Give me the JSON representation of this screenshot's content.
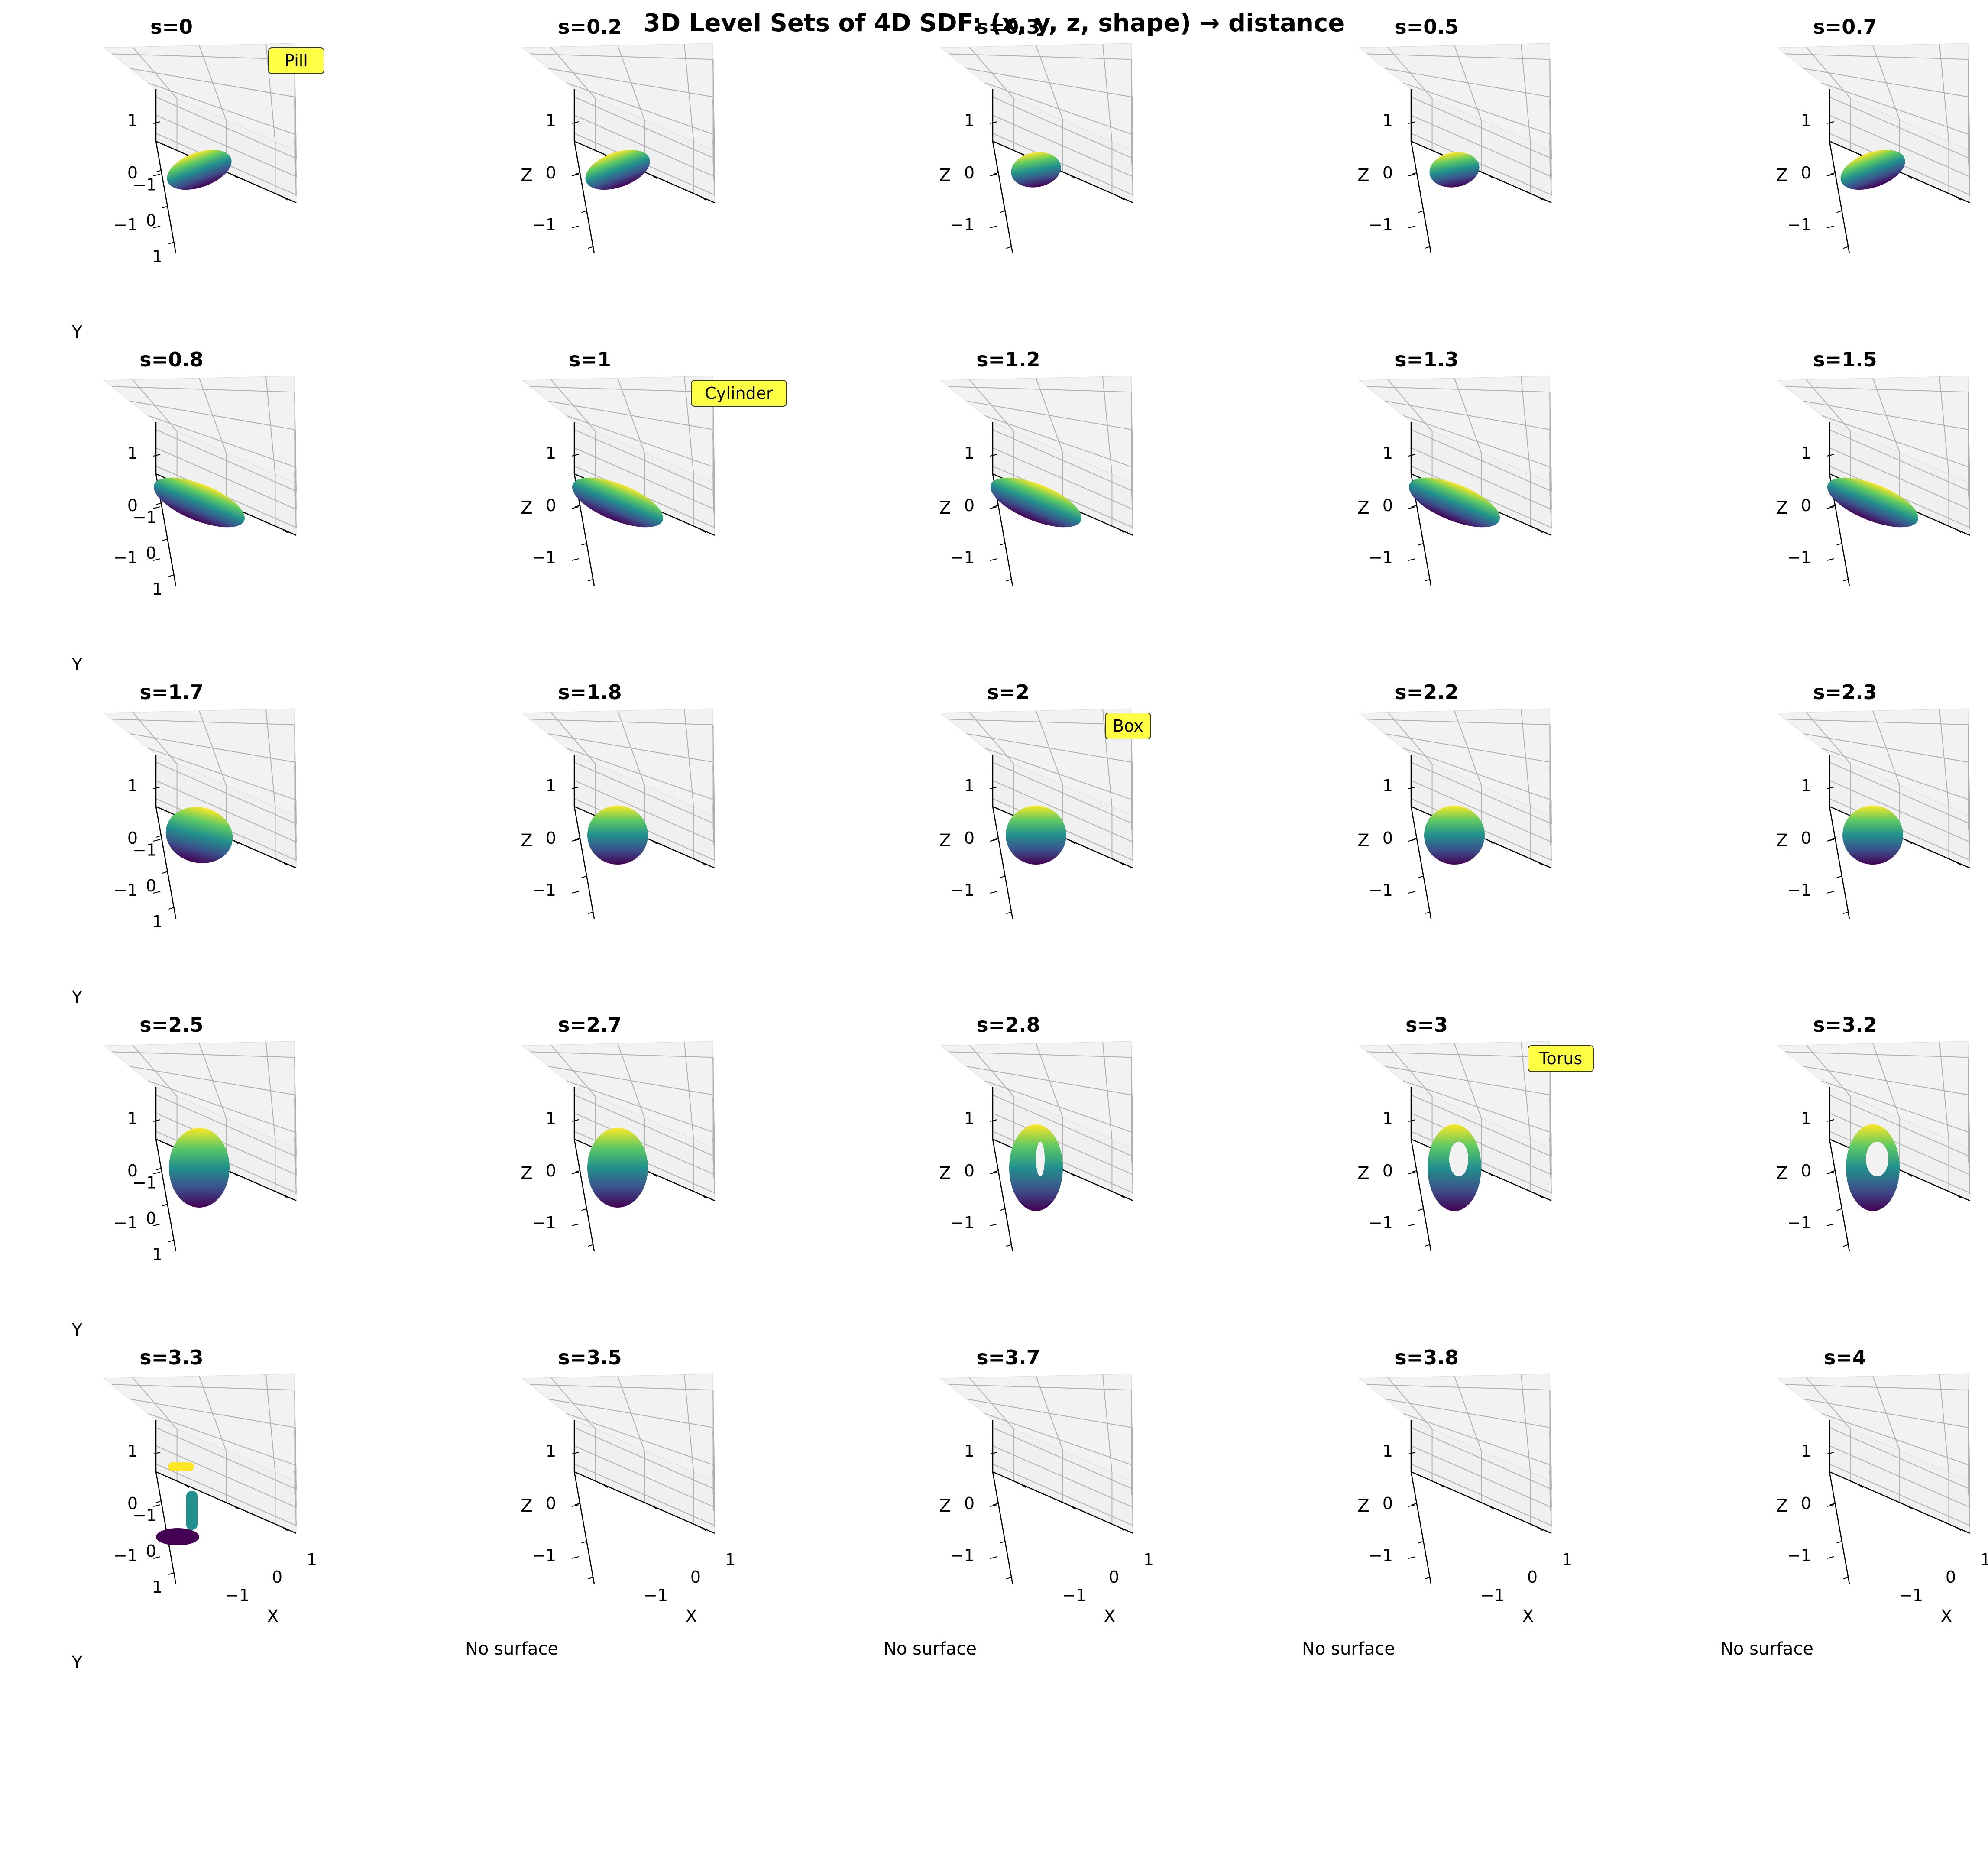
{
  "chart_data": {
    "type": "3d-surface-grid",
    "title": "3D Level Sets of 4D SDF: (x, y, z, shape) → distance",
    "grid": "5x5",
    "axis_ticks": [
      "−1",
      "0",
      "1"
    ],
    "axis_labels": {
      "x": "X",
      "y": "Y",
      "z": "Z"
    },
    "axis_limits": {
      "x": [
        -1.5,
        1.5
      ],
      "y": [
        -1.5,
        1.5
      ],
      "z": [
        -1.5,
        1.5
      ]
    },
    "colormap": "viridis",
    "colors": [
      "#440154",
      "#3b528b",
      "#21908d",
      "#5dc963",
      "#fde725"
    ],
    "no_surface_text": "No surface",
    "panels": [
      {
        "title": "s=0",
        "shape": "pill",
        "badge": "Pill"
      },
      {
        "title": "s=0.2",
        "shape": "pill"
      },
      {
        "title": "s=0.3",
        "shape": "pill-small"
      },
      {
        "title": "s=0.5",
        "shape": "pill-small"
      },
      {
        "title": "s=0.7",
        "shape": "pill"
      },
      {
        "title": "s=0.8",
        "shape": "long"
      },
      {
        "title": "s=1",
        "shape": "long",
        "badge": "Cylinder"
      },
      {
        "title": "s=1.2",
        "shape": "long"
      },
      {
        "title": "s=1.3",
        "shape": "long"
      },
      {
        "title": "s=1.5",
        "shape": "long"
      },
      {
        "title": "s=1.7",
        "shape": "boxish"
      },
      {
        "title": "s=1.8",
        "shape": "box"
      },
      {
        "title": "s=2",
        "shape": "box",
        "badge": "Box"
      },
      {
        "title": "s=2.2",
        "shape": "box"
      },
      {
        "title": "s=2.3",
        "shape": "box"
      },
      {
        "title": "s=2.5",
        "shape": "tall"
      },
      {
        "title": "s=2.7",
        "shape": "tall"
      },
      {
        "title": "s=2.8",
        "shape": "torus-open"
      },
      {
        "title": "s=3",
        "shape": "torus",
        "badge": "Torus"
      },
      {
        "title": "s=3.2",
        "shape": "torus-thin"
      },
      {
        "title": "s=3.3",
        "shape": "fragments"
      },
      {
        "title": "s=3.5",
        "shape": "none"
      },
      {
        "title": "s=3.7",
        "shape": "none"
      },
      {
        "title": "s=3.8",
        "shape": "none"
      },
      {
        "title": "s=4",
        "shape": "none"
      }
    ]
  }
}
